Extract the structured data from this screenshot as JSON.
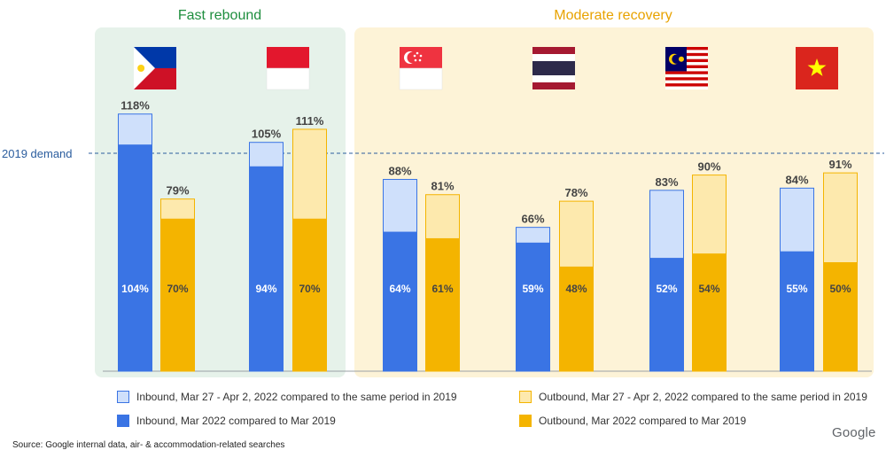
{
  "chart_data": {
    "type": "bar",
    "groups": [
      {
        "label": "Fast rebound",
        "color": "#e6f2ea",
        "label_color": "#1e8e3e"
      },
      {
        "label": "Moderate recovery",
        "color": "#fdf3d7",
        "label_color": "#e8a200"
      }
    ],
    "reference_line": {
      "label": "2019 demand",
      "value": 100
    },
    "ylim": [
      0,
      125
    ],
    "categories": [
      "Philippines",
      "Indonesia",
      "Singapore",
      "Thailand",
      "Malaysia",
      "Vietnam"
    ],
    "series": [
      {
        "name": "Inbound, Mar 27 - Apr 2, 2022 compared to the same period in 2019",
        "values": [
          118,
          105,
          88,
          66,
          83,
          84
        ],
        "labels": [
          "118%",
          "105%",
          "88%",
          "66%",
          "83%",
          "84%"
        ],
        "color": "#cfe0fb",
        "stroke": "#3a74e4"
      },
      {
        "name": "Inbound, Mar 2022 compared to Mar 2019",
        "values": [
          104,
          94,
          64,
          59,
          52,
          55
        ],
        "labels": [
          "104%",
          "94%",
          "64%",
          "59%",
          "52%",
          "55%"
        ],
        "color": "#3a74e4"
      },
      {
        "name": "Outbound, Mar 27 - Apr 2, 2022 compared to the same period in 2019",
        "values": [
          79,
          111,
          81,
          78,
          90,
          91
        ],
        "labels": [
          "79%",
          "111%",
          "81%",
          "78%",
          "90%",
          "91%"
        ],
        "color": "#fde9ad",
        "stroke": "#f4b400"
      },
      {
        "name": "Outbound, Mar 2022 compared to Mar 2019",
        "values": [
          70,
          70,
          61,
          48,
          54,
          50
        ],
        "labels": [
          "70%",
          "70%",
          "61%",
          "48%",
          "54%",
          "50%"
        ],
        "color": "#f4b400"
      }
    ],
    "title": "",
    "xlabel": "",
    "ylabel": ""
  },
  "legend": {
    "inbound_week": "Inbound, Mar 27 - Apr 2, 2022 compared to the same period in 2019",
    "inbound_month": "Inbound, Mar 2022 compared to Mar 2019",
    "outbound_week": "Outbound, Mar 27 - Apr 2, 2022 compared to the same period in 2019",
    "outbound_month": "Outbound, Mar 2022 compared to Mar 2019"
  },
  "source": "Source: Google internal data, air- & accommodation-related searches",
  "brand": "Google"
}
